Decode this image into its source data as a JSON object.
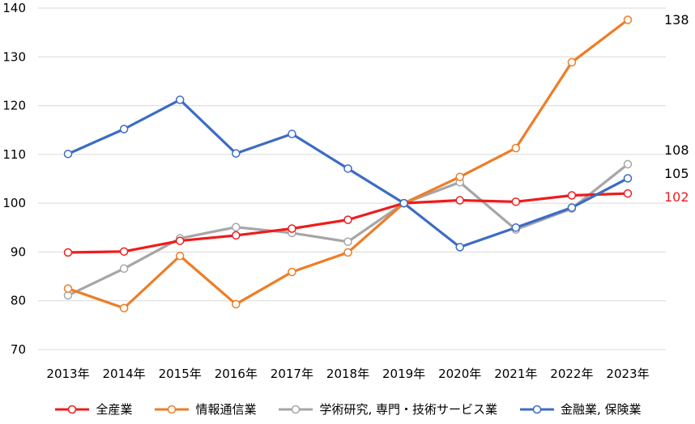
{
  "chart_data": {
    "type": "line",
    "categories": [
      "2013年",
      "2014年",
      "2015年",
      "2016年",
      "2017年",
      "2018年",
      "2019年",
      "2020年",
      "2021年",
      "2022年",
      "2023年"
    ],
    "ylim": [
      70,
      140
    ],
    "yticks": [
      70,
      80,
      90,
      100,
      110,
      120,
      130,
      140
    ],
    "grid": true,
    "legend_position": "bottom",
    "series": [
      {
        "name": "全産業",
        "color": "#ee1c1c",
        "values": [
          89.9,
          90.1,
          92.3,
          93.4,
          94.8,
          96.6,
          100,
          100.6,
          100.3,
          101.6,
          102
        ],
        "end_label": "102",
        "end_label_color": "#ee1c1c"
      },
      {
        "name": "情報通信業",
        "color": "#ee7d26",
        "values": [
          82.5,
          78.5,
          89.2,
          79.3,
          85.9,
          89.9,
          100,
          105.4,
          111.3,
          128.9,
          137.6
        ],
        "end_label": "138",
        "end_label_color": "#000000"
      },
      {
        "name": "学術研究, 専門・技術サービス業",
        "color": "#a6a6a6",
        "values": [
          81.1,
          86.6,
          92.8,
          95.1,
          93.9,
          92.1,
          100,
          104.3,
          94.6,
          98.9,
          108
        ],
        "end_label": "108",
        "end_label_color": "#000000"
      },
      {
        "name": "金融業, 保険業",
        "color": "#3c6cc4",
        "values": [
          110.1,
          115.2,
          121.2,
          110.2,
          114.2,
          107.1,
          100,
          91,
          95,
          99.1,
          105.1
        ],
        "end_label": "105",
        "end_label_color": "#000000"
      }
    ]
  }
}
